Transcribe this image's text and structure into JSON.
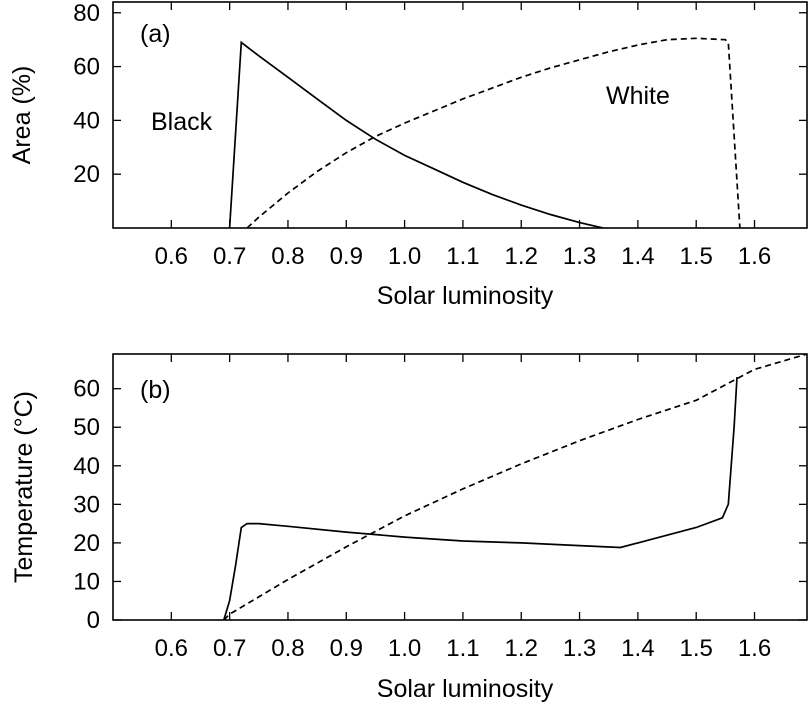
{
  "chart_data": [
    {
      "type": "line",
      "panel_label": "(a)",
      "xlabel": "Solar luminosity",
      "ylabel": "Area (%)",
      "xlim": [
        0.5,
        1.69
      ],
      "ylim": [
        0,
        84
      ],
      "xticks": [
        "0.6",
        "0.7",
        "0.8",
        "0.9",
        "1.0",
        "1.1",
        "1.2",
        "1.3",
        "1.4",
        "1.5",
        "1.6"
      ],
      "yticks": [
        "20",
        "40",
        "60",
        "80"
      ],
      "grid": false,
      "series": [
        {
          "name": "Black",
          "style": "solid",
          "x": [
            0.7,
            0.72,
            0.75,
            0.8,
            0.85,
            0.9,
            0.95,
            1.0,
            1.05,
            1.1,
            1.15,
            1.2,
            1.25,
            1.3,
            1.34
          ],
          "y": [
            0,
            69,
            64,
            56,
            48,
            40,
            33,
            27,
            22,
            17,
            12.5,
            8.5,
            5,
            2,
            0
          ]
        },
        {
          "name": "White",
          "style": "dashed",
          "x": [
            0.73,
            0.75,
            0.8,
            0.85,
            0.9,
            0.95,
            1.0,
            1.05,
            1.1,
            1.15,
            1.2,
            1.25,
            1.3,
            1.35,
            1.4,
            1.45,
            1.5,
            1.55,
            1.555,
            1.575
          ],
          "y": [
            0,
            4,
            13,
            21,
            28,
            34,
            39,
            43.5,
            48,
            52,
            56,
            59.5,
            62.5,
            65.5,
            68,
            70,
            70.5,
            70,
            69,
            0
          ]
        }
      ],
      "annotations": [
        "Black",
        "White"
      ]
    },
    {
      "type": "line",
      "panel_label": "(b)",
      "xlabel": "Solar luminosity",
      "ylabel": "Temperature (°C)",
      "xlim": [
        0.5,
        1.69
      ],
      "ylim": [
        0,
        69
      ],
      "xticks": [
        "0.6",
        "0.7",
        "0.8",
        "0.9",
        "1.0",
        "1.1",
        "1.2",
        "1.3",
        "1.4",
        "1.5",
        "1.6"
      ],
      "yticks": [
        "0",
        "10",
        "20",
        "30",
        "40",
        "50",
        "60"
      ],
      "grid": false,
      "series": [
        {
          "style": "solid",
          "x": [
            0.69,
            0.7,
            0.71,
            0.72,
            0.73,
            0.75,
            0.8,
            0.9,
            1.0,
            1.1,
            1.2,
            1.3,
            1.37,
            1.4,
            1.45,
            1.5,
            1.545,
            1.555,
            1.565,
            1.57
          ],
          "y": [
            0,
            5,
            14,
            24,
            25,
            25,
            24.3,
            22.8,
            21.5,
            20.5,
            20,
            19.3,
            18.8,
            20,
            22,
            24,
            26.5,
            30,
            50,
            63
          ]
        },
        {
          "style": "dashed",
          "x": [
            0.69,
            0.7,
            0.8,
            0.9,
            1.0,
            1.1,
            1.2,
            1.3,
            1.4,
            1.5,
            1.6,
            1.69
          ],
          "y": [
            0,
            1.5,
            10.5,
            19,
            27,
            34,
            40.5,
            46.5,
            52,
            57,
            65,
            69
          ]
        }
      ]
    }
  ]
}
